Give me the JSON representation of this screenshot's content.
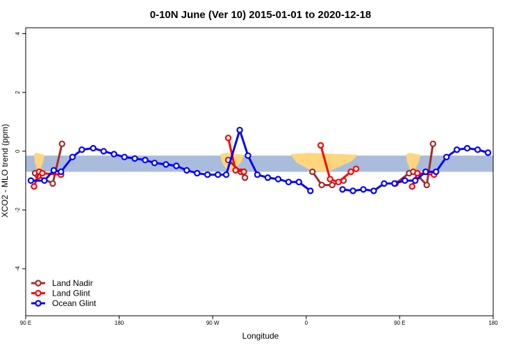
{
  "chart_data": {
    "type": "line",
    "title": "0-10N June (Ver 10)   2015-01-01 to 2020-12-18",
    "xlabel": "Longitude",
    "ylabel": "XCO2 - MLO trend (ppm)",
    "xlim": [
      90,
      540
    ],
    "ylim": [
      -5.6,
      4.2
    ],
    "x_ticks": [
      {
        "value": 90,
        "label": "90 E"
      },
      {
        "value": 180,
        "label": "180"
      },
      {
        "value": 270,
        "label": "90 W"
      },
      {
        "value": 360,
        "label": "0"
      },
      {
        "value": 450,
        "label": "90 E"
      },
      {
        "value": 540,
        "label": "180"
      }
    ],
    "y_ticks": [
      {
        "value": -4,
        "label": "-4"
      },
      {
        "value": -2,
        "label": "-2"
      },
      {
        "value": 0,
        "label": "0"
      },
      {
        "value": 2,
        "label": "2"
      },
      {
        "value": 4,
        "label": "4"
      }
    ],
    "grid": false,
    "legend_position": "bottom-left",
    "band": {
      "ymin": -0.7,
      "ymax": -0.15,
      "color": "#a9bcdc"
    },
    "land_color": "#fed67e",
    "land_regions": [
      {
        "x0": 98,
        "x1": 108
      },
      {
        "x0": 277,
        "x1": 300
      },
      {
        "x0": 345,
        "x1": 410
      },
      {
        "x0": 456,
        "x1": 470
      }
    ],
    "series": [
      {
        "name": "Land Nadir",
        "color": "#a52a2a",
        "segments": [
          [
            [
              99,
              -0.75
            ],
            [
              102,
              -0.85
            ],
            [
              116,
              -1.1
            ],
            [
              125,
              0.25
            ]
          ],
          [
            [
              285,
              -0.3
            ],
            [
              297,
              -0.7
            ],
            [
              301,
              -0.9
            ]
          ],
          [
            [
              366,
              -0.7
            ],
            [
              375,
              -1.15
            ],
            [
              385,
              -1.15
            ],
            [
              396,
              -1.0
            ]
          ],
          [
            [
              446,
              -1.1
            ],
            [
              459,
              -0.75
            ],
            [
              463,
              -0.7
            ],
            [
              468,
              -0.85
            ],
            [
              476,
              -1.15
            ],
            [
              482,
              0.25
            ]
          ]
        ]
      },
      {
        "name": "Land Glint",
        "color": "#ff0000",
        "segments": [
          [
            [
              98,
              -1.2
            ],
            [
              103,
              -0.7
            ],
            [
              106,
              -0.75
            ],
            [
              124,
              -0.8
            ]
          ],
          [
            [
              285,
              0.45
            ],
            [
              292,
              -0.65
            ],
            [
              300,
              -0.7
            ]
          ],
          [
            [
              374,
              0.2
            ],
            [
              383,
              -0.95
            ],
            [
              391,
              -1.05
            ],
            [
              403,
              -0.7
            ],
            [
              408,
              -0.6
            ]
          ],
          [
            [
              462,
              -1.2
            ],
            [
              467,
              -0.75
            ],
            [
              483,
              -0.8
            ]
          ]
        ]
      },
      {
        "name": "Ocean Glint",
        "color": "#0000ff",
        "segments": [
          [
            [
              95,
              -1.0
            ],
            [
              108,
              -1.0
            ],
            [
              117,
              -0.65
            ],
            [
              124,
              -0.7
            ],
            [
              135,
              -0.2
            ],
            [
              144,
              0.05
            ],
            [
              155,
              0.1
            ],
            [
              165,
              0.0
            ],
            [
              175,
              -0.1
            ],
            [
              185,
              -0.2
            ],
            [
              195,
              -0.25
            ],
            [
              205,
              -0.3
            ],
            [
              214,
              -0.4
            ],
            [
              225,
              -0.45
            ],
            [
              235,
              -0.5
            ],
            [
              245,
              -0.65
            ],
            [
              255,
              -0.75
            ],
            [
              265,
              -0.8
            ],
            [
              275,
              -0.8
            ],
            [
              283,
              -0.8
            ],
            [
              296,
              0.72
            ],
            [
              304,
              -0.15
            ],
            [
              313,
              -0.8
            ],
            [
              323,
              -0.9
            ],
            [
              333,
              -0.95
            ],
            [
              343,
              -1.05
            ],
            [
              353,
              -1.05
            ],
            [
              364,
              -1.35
            ]
          ],
          [
            [
              395,
              -1.3
            ],
            [
              405,
              -1.35
            ],
            [
              415,
              -1.3
            ],
            [
              425,
              -1.35
            ],
            [
              435,
              -1.1
            ],
            [
              445,
              -1.1
            ],
            [
              455,
              -1.0
            ],
            [
              465,
              -1.0
            ],
            [
              475,
              -0.7
            ],
            [
              485,
              -0.7
            ],
            [
              495,
              -0.2
            ],
            [
              505,
              0.05
            ],
            [
              515,
              0.1
            ],
            [
              525,
              0.05
            ],
            [
              535,
              -0.05
            ]
          ]
        ]
      }
    ]
  }
}
